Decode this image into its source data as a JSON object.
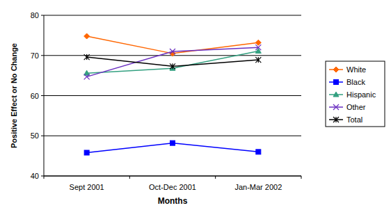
{
  "chart_data": {
    "type": "line",
    "x_label": "Months",
    "y_label": "Positive Effect or No Change",
    "categories": [
      "Sept 2001",
      "Oct-Dec 2001",
      "Jan-Mar 2002"
    ],
    "ylim": [
      40,
      80
    ],
    "yticks": [
      40,
      50,
      60,
      70,
      80
    ],
    "grid": true,
    "legend": "right",
    "series": [
      {
        "name": "White",
        "color": "#ff6600",
        "marker": "diamond",
        "values": [
          74.8,
          70.5,
          73.2
        ]
      },
      {
        "name": "Black",
        "color": "#0000ff",
        "marker": "square",
        "values": [
          45.8,
          48.2,
          46.0
        ]
      },
      {
        "name": "Hispanic",
        "color": "#33a080",
        "marker": "triangle",
        "values": [
          65.6,
          66.8,
          71.1
        ]
      },
      {
        "name": "Other",
        "color": "#6a2fc0",
        "marker": "x",
        "values": [
          64.7,
          71.0,
          72.0
        ]
      },
      {
        "name": "Total",
        "color": "#000000",
        "marker": "asterisk",
        "values": [
          69.6,
          67.3,
          68.9
        ]
      }
    ]
  }
}
